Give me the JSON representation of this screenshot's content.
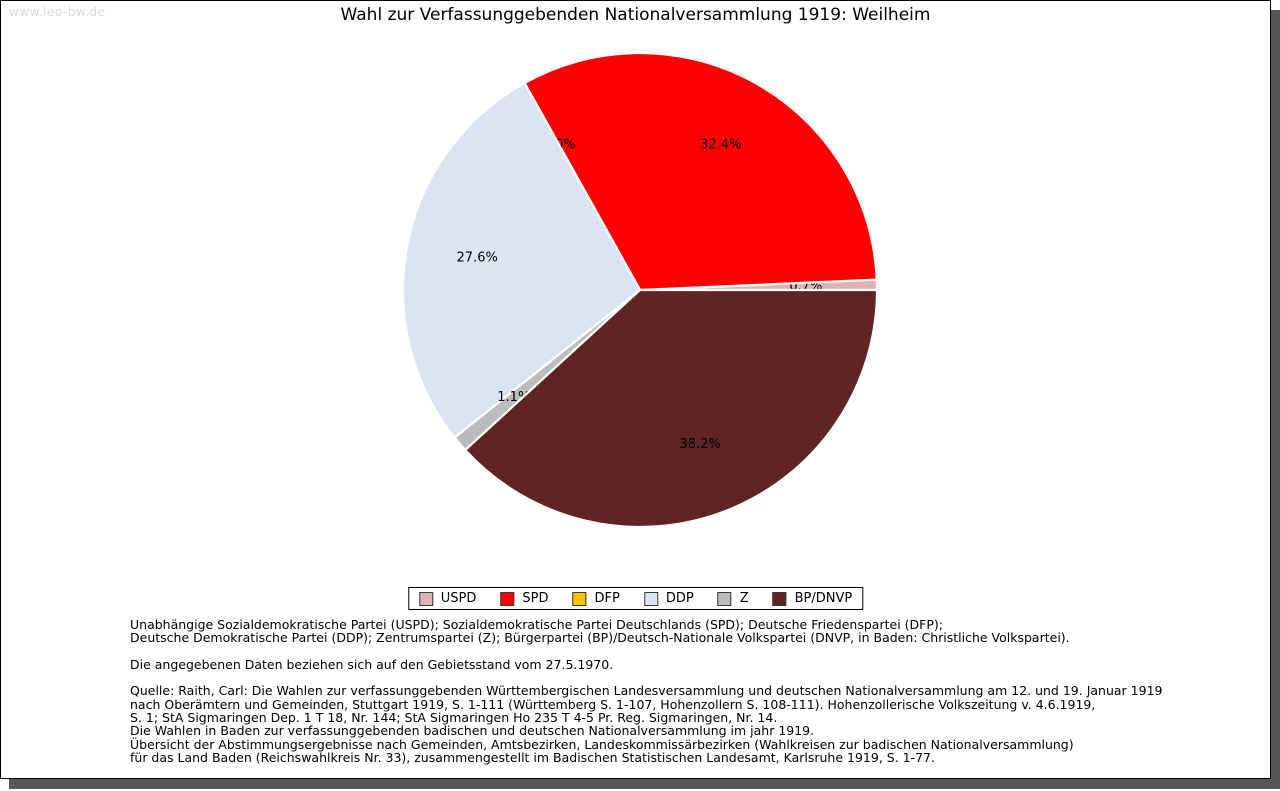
{
  "page": {
    "watermark": "www.leo-bw.de",
    "title": "Wahl zur Verfassunggebenden Nationalversammlung 1919: Weilheim"
  },
  "chart_data": {
    "type": "pie",
    "title": "Wahl zur Verfassunggebenden Nationalversammlung 1919: Weilheim",
    "start_angle_deg": 0,
    "direction": "counterclockwise",
    "label_radius_fraction": 0.7,
    "percent_label_format": "one-decimal-percent",
    "slice_edge_color": "#ffffff",
    "legend_position": "bottom-center",
    "slices": [
      {
        "label": "USPD",
        "value_pct": 0.7,
        "color": "#ddb3b4"
      },
      {
        "label": "SPD",
        "value_pct": 32.4,
        "color": "#fe0000"
      },
      {
        "label": "DFP",
        "value_pct": 0.0,
        "color": "#fdc300"
      },
      {
        "label": "DDP",
        "value_pct": 27.6,
        "color": "#dbe4f0"
      },
      {
        "label": "Z",
        "value_pct": 1.1,
        "color": "#bcbcbc"
      },
      {
        "label": "BP/DNVP",
        "value_pct": 38.2,
        "color": "#5f2423"
      }
    ]
  },
  "notes": {
    "party_lines": [
      "Unabhängige Sozialdemokratische Partei (USPD); Sozialdemokratische Partei Deutschlands (SPD); Deutsche Friedenspartei (DFP);",
      "Deutsche Demokratische Partei (DDP); Zentrumspartei (Z); Bürgerpartei (BP)/Deutsch-Nationale Volkspartei (DNVP, in Baden: Christliche Volkspartei)."
    ],
    "gebietsstand_line": "Die angegebenen Daten beziehen sich auf den Gebietsstand vom 27.5.1970.",
    "source_lines": [
      "Quelle: Raith, Carl: Die Wahlen zur verfassunggebenden Württembergischen Landesversammlung und deutschen Nationalversammlung am 12. und 19. Januar 1919",
      "nach Oberämtern und Gemeinden, Stuttgart 1919, S. 1-111 (Württemberg S. 1-107, Hohenzollern S. 108-111). Hohenzollerische Volkszeitung v. 4.6.1919,",
      "S. 1; StA Sigmaringen Dep. 1 T 18, Nr. 144; StA Sigmaringen Ho 235 T 4-5 Pr. Reg. Sigmaringen, Nr. 14.",
      "Die Wahlen in Baden zur verfassunggebenden badischen und deutschen Nationalversammlung im jahr 1919.",
      "Übersicht der Abstimmungsergebnisse nach Gemeinden, Amtsbezirken, Landeskommissärbezirken (Wahlkreisen zur badischen Nationalversammlung)",
      "für das Land Baden (Reichswahlkreis Nr. 33), zusammengestellt im Badischen Statistischen Landesamt, Karlsruhe 1919, S. 1-77."
    ]
  }
}
